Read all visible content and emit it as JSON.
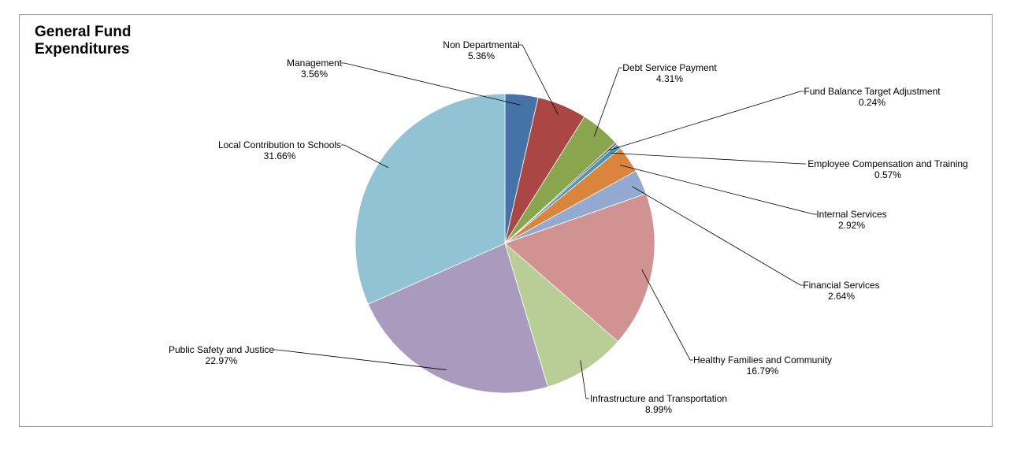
{
  "chart_data": {
    "type": "pie",
    "title_lines": [
      "General Fund",
      "Expenditures"
    ],
    "slices": [
      {
        "name": "Management",
        "value": 3.56,
        "percent_label": "3.56%",
        "color": "#4572a7"
      },
      {
        "name": "Non Departmental",
        "value": 5.36,
        "percent_label": "5.36%",
        "color": "#aa4643"
      },
      {
        "name": "Debt Service Payment",
        "value": 4.31,
        "percent_label": "4.31%",
        "color": "#89a54e"
      },
      {
        "name": "Fund Balance Target Adjustment",
        "value": 0.24,
        "percent_label": "0.24%",
        "color": "#71588f"
      },
      {
        "name": "Employee Compensation and Training",
        "value": 0.57,
        "percent_label": "0.57%",
        "color": "#4198af"
      },
      {
        "name": "Internal Services",
        "value": 2.92,
        "percent_label": "2.92%",
        "color": "#db843d"
      },
      {
        "name": "Financial Services",
        "value": 2.64,
        "percent_label": "2.64%",
        "color": "#93a9cf"
      },
      {
        "name": "Healthy Families and Community",
        "value": 16.79,
        "percent_label": "16.79%",
        "color": "#d19392"
      },
      {
        "name": "Infrastructure and Transportation",
        "value": 8.99,
        "percent_label": "8.99%",
        "color": "#b9cd96"
      },
      {
        "name": "Public Safety and Justice",
        "value": 22.97,
        "percent_label": "22.97%",
        "color": "#a99bbd"
      },
      {
        "name": "Local Contribution to Schools",
        "value": 31.66,
        "percent_label": "31.66%",
        "color": "#92c3d4"
      }
    ]
  }
}
